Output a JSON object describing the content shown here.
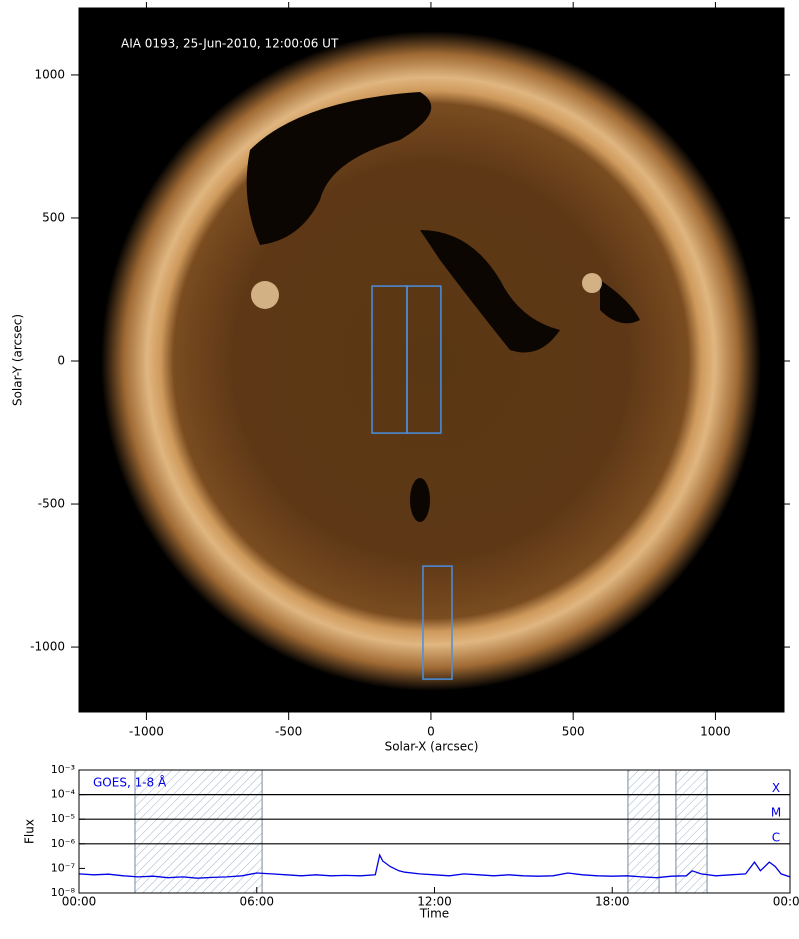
{
  "chart_data": [
    {
      "type": "image",
      "annotation": "AIA 0193, 25-Jun-2010, 12:00:06 UT",
      "xlabel": "Solar-X (arcsec)",
      "ylabel": "Solar-Y (arcsec)",
      "xlim": [
        -1237,
        1241
      ],
      "ylim": [
        -1227,
        1234
      ],
      "xticks": [
        -1000,
        -500,
        0,
        500,
        1000
      ],
      "yticks": [
        -1000,
        -500,
        0,
        500,
        1000
      ],
      "box_color": "#4a8fe0",
      "boxes": [
        {
          "x0": -207,
          "x1": -84,
          "y0": -252,
          "y1": 262
        },
        {
          "x0": -84,
          "x1": 35,
          "y0": -252,
          "y1": 262
        },
        {
          "x0": -28,
          "x1": 74,
          "y0": -1112,
          "y1": -717
        }
      ]
    },
    {
      "type": "line",
      "xlabel": "Time",
      "ylabel": "Flux",
      "xlim": [
        0,
        24
      ],
      "ylim": [
        1e-08,
        0.001
      ],
      "log_y": true,
      "xticks": [
        {
          "value": 0,
          "label": "00:00"
        },
        {
          "value": 6,
          "label": "06:00"
        },
        {
          "value": 12,
          "label": "12:00"
        },
        {
          "value": 18,
          "label": "18:00"
        },
        {
          "value": 24,
          "label": "00:00"
        }
      ],
      "yticks": [
        {
          "value": 1e-08,
          "label": "10⁻⁸"
        },
        {
          "value": 1e-07,
          "label": "10⁻⁷"
        },
        {
          "value": 1e-06,
          "label": "10⁻⁶"
        },
        {
          "value": 1e-05,
          "label": "10⁻⁵"
        },
        {
          "value": 0.0001,
          "label": "10⁻⁴"
        },
        {
          "value": 0.001,
          "label": "10⁻³"
        }
      ],
      "flare_classes": [
        {
          "label": "X",
          "value": 0.0001
        },
        {
          "label": "M",
          "value": 1e-05
        },
        {
          "label": "C",
          "value": 1e-06
        }
      ],
      "shaded_intervals": [
        [
          1.89,
          6.18
        ],
        [
          18.53,
          19.58
        ],
        [
          20.15,
          21.2
        ]
      ],
      "x": [
        0,
        0.5,
        1,
        1.5,
        2,
        2.5,
        3,
        3.5,
        4,
        4.5,
        5,
        5.5,
        6,
        6.5,
        7,
        7.5,
        8,
        8.5,
        9,
        9.5,
        10,
        10.15,
        10.25,
        10.5,
        10.8,
        11,
        11.5,
        12,
        12.5,
        13,
        13.5,
        14,
        14.5,
        15,
        15.5,
        16,
        16.5,
        17,
        17.5,
        18,
        18.5,
        19,
        19.5,
        20,
        20.5,
        20.7,
        21,
        21.5,
        22,
        22.5,
        22.8,
        23,
        23.3,
        23.5,
        23.7,
        24
      ],
      "series": [
        {
          "name": "GOES, 1-8 Å",
          "color": "#0000e6",
          "values": [
            6e-08,
            5.5e-08,
            5.8e-08,
            5e-08,
            4.5e-08,
            4.8e-08,
            4.2e-08,
            4.5e-08,
            4e-08,
            4.3e-08,
            4.5e-08,
            5e-08,
            6.5e-08,
            6e-08,
            5.5e-08,
            5e-08,
            5.5e-08,
            5e-08,
            5.2e-08,
            5e-08,
            5.5e-08,
            3.5e-07,
            2e-07,
            1.2e-07,
            8e-08,
            7e-08,
            6e-08,
            5.5e-08,
            5e-08,
            6e-08,
            5.5e-08,
            5e-08,
            5.5e-08,
            5e-08,
            4.8e-08,
            5e-08,
            6.5e-08,
            5.5e-08,
            5e-08,
            4.8e-08,
            5e-08,
            4.5e-08,
            4.2e-08,
            4.8e-08,
            5e-08,
            8e-08,
            6e-08,
            5e-08,
            5.5e-08,
            6e-08,
            1.8e-07,
            8e-08,
            1.8e-07,
            1.2e-07,
            6e-08,
            4.5e-08
          ]
        }
      ]
    }
  ]
}
